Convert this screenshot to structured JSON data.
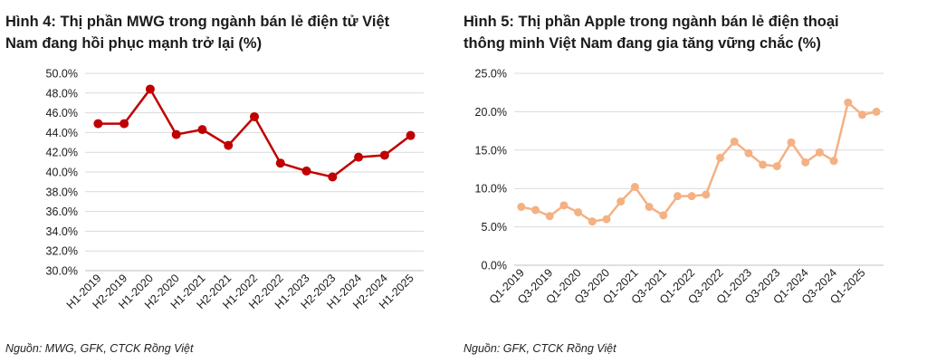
{
  "charts": [
    {
      "title_line1": "Hình 4: Thị phần MWG trong ngành bán lẻ điện tử Việt",
      "title_line2": "Nam đang hồi phục mạnh trở lại (%)",
      "source": "Nguồn: MWG, GFK, CTCK Rồng Việt",
      "color": "#c00000"
    },
    {
      "title_line1": "Hình 5: Thị phần Apple trong ngành bán lẻ điện thoại",
      "title_line2": "thông minh Việt Nam đang gia tăng vững chắc (%)",
      "source": "Nguồn: GFK, CTCK Rồng Việt",
      "color": "#f4b183"
    }
  ],
  "chart_data": [
    {
      "type": "line",
      "title": "Hình 4: Thị phần MWG trong ngành bán lẻ điện tử Việt Nam đang hồi phục mạnh trở lại (%)",
      "categories": [
        "H1-2019",
        "H2-2019",
        "H1-2020",
        "H2-2020",
        "H1-2021",
        "H2-2021",
        "H1-2022",
        "H2-2022",
        "H1-2023",
        "H2-2023",
        "H1-2024",
        "H2-2024",
        "H1-2025"
      ],
      "values": [
        44.9,
        44.9,
        48.4,
        43.8,
        44.3,
        42.7,
        45.6,
        40.9,
        40.1,
        39.5,
        41.5,
        41.7,
        43.7
      ],
      "ylim": [
        30,
        50
      ],
      "yticks": [
        30,
        32,
        34,
        36,
        38,
        40,
        42,
        44,
        46,
        48,
        50
      ],
      "ytick_labels": [
        "30.0%",
        "32.0%",
        "34.0%",
        "36.0%",
        "38.0%",
        "40.0%",
        "42.0%",
        "44.0%",
        "46.0%",
        "48.0%",
        "50.0%"
      ],
      "grid": true,
      "color": "#c00000"
    },
    {
      "type": "line",
      "title": "Hình 5: Thị phần Apple trong ngành bán lẻ điện thoại thông minh Việt Nam đang gia tăng vững chắc (%)",
      "categories": [
        "Q1-2019",
        "Q2-2019",
        "Q3-2019",
        "Q4-2019",
        "Q1-2020",
        "Q2-2020",
        "Q3-2020",
        "Q4-2020",
        "Q1-2021",
        "Q2-2021",
        "Q3-2021",
        "Q4-2021",
        "Q1-2022",
        "Q2-2022",
        "Q3-2022",
        "Q4-2022",
        "Q1-2023",
        "Q2-2023",
        "Q3-2023",
        "Q4-2023",
        "Q1-2024",
        "Q2-2024",
        "Q3-2024",
        "Q4-2024",
        "Q1-2025",
        "Q2-2025"
      ],
      "x_tick_labels": [
        "Q1-2019",
        "",
        "Q3-2019",
        "",
        "Q1-2020",
        "",
        "Q3-2020",
        "",
        "Q1-2021",
        "",
        "Q3-2021",
        "",
        "Q1-2022",
        "",
        "Q3-2022",
        "",
        "Q1-2023",
        "",
        "Q3-2023",
        "",
        "Q1-2024",
        "",
        "Q3-2024",
        "",
        "Q1-2025",
        ""
      ],
      "values": [
        7.6,
        7.2,
        6.4,
        7.8,
        6.9,
        5.7,
        6.0,
        8.3,
        10.2,
        7.6,
        6.5,
        9.0,
        9.0,
        9.2,
        14.0,
        16.1,
        14.6,
        13.1,
        12.9,
        16.0,
        13.4,
        14.7,
        13.6,
        21.2,
        19.6,
        20.0
      ],
      "ylim": [
        0,
        25
      ],
      "yticks": [
        0,
        5,
        10,
        15,
        20,
        25
      ],
      "ytick_labels": [
        "0.0%",
        "5.0%",
        "10.0%",
        "15.0%",
        "20.0%",
        "25.0%"
      ],
      "grid": true,
      "color": "#f4b183"
    }
  ]
}
